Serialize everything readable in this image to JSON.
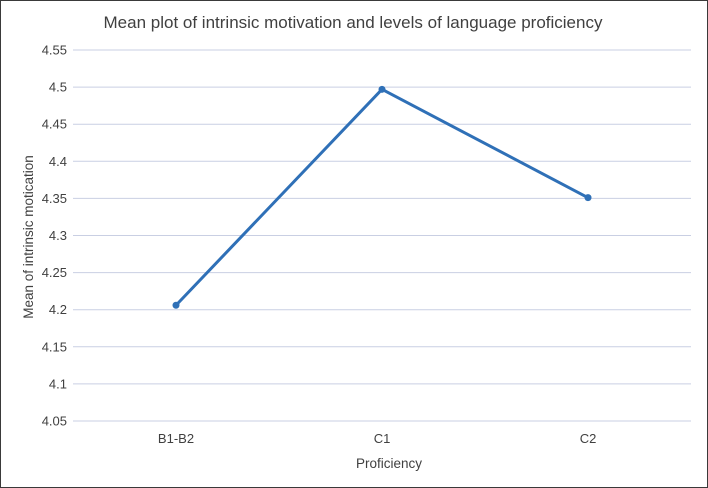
{
  "chart_data": {
    "type": "line",
    "title": "Mean plot of intrinsic motivation and levels of language proficiency",
    "xlabel": "Proficiency",
    "ylabel": "Mean of intrinsic motication",
    "categories": [
      "B1-B2",
      "C1",
      "C2"
    ],
    "series": [
      {
        "values": [
          4.206,
          4.497,
          4.351
        ]
      }
    ],
    "ylim": [
      4.05,
      4.55
    ],
    "yticks": [
      "4.05",
      "4.1",
      "4.15",
      "4.2",
      "4.25",
      "4.3",
      "4.35",
      "4.4",
      "4.45",
      "4.5",
      "4.55"
    ],
    "grid": true,
    "legend": "none"
  },
  "colors": {
    "series": "#2f70b7",
    "grid": "#c9cfe3",
    "text": "#404040"
  }
}
